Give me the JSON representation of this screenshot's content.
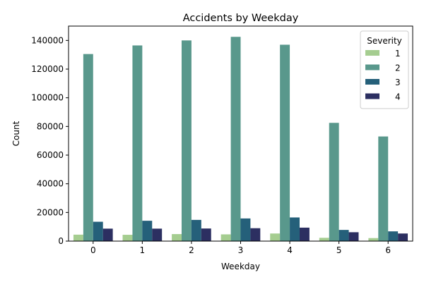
{
  "chart_data": {
    "type": "bar",
    "title": "Accidents by Weekday",
    "xlabel": "Weekday",
    "ylabel": "Count",
    "categories": [
      "0",
      "1",
      "2",
      "3",
      "4",
      "5",
      "6"
    ],
    "ylim": [
      0,
      150000
    ],
    "yticks": [
      0,
      20000,
      40000,
      60000,
      80000,
      100000,
      120000,
      140000
    ],
    "ytick_labels": [
      "0",
      "20000",
      "40000",
      "60000",
      "80000",
      "100000",
      "120000",
      "140000"
    ],
    "grid": false,
    "legend": {
      "title": "Severity",
      "placement": "top-right"
    },
    "series": [
      {
        "name": "1",
        "color": "#a5cd90",
        "values": [
          4500,
          4400,
          4900,
          4700,
          5300,
          2300,
          2100
        ]
      },
      {
        "name": "2",
        "color": "#59988c",
        "values": [
          130500,
          136500,
          140000,
          142500,
          137000,
          82500,
          73000
        ]
      },
      {
        "name": "3",
        "color": "#25607a",
        "values": [
          13500,
          14200,
          14800,
          15800,
          16500,
          7800,
          6800
        ]
      },
      {
        "name": "4",
        "color": "#2c2f61",
        "values": [
          8700,
          8700,
          8800,
          9000,
          9400,
          6200,
          5300
        ]
      }
    ]
  }
}
